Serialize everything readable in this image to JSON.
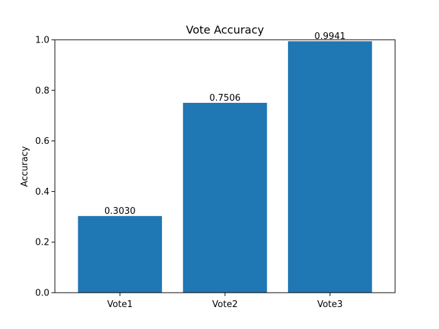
{
  "chart_data": {
    "type": "bar",
    "title": "Vote Accuracy",
    "xlabel": "",
    "ylabel": "Accuracy",
    "categories": [
      "Vote1",
      "Vote2",
      "Vote3"
    ],
    "values": [
      0.303,
      0.7506,
      0.9941
    ],
    "value_labels": [
      "0.3030",
      "0.7506",
      "0.9941"
    ],
    "ylim": [
      0,
      1.0
    ],
    "yticks": [
      0.0,
      0.2,
      0.4,
      0.6,
      0.8,
      1.0
    ],
    "ytick_labels": [
      "0.0",
      "0.2",
      "0.4",
      "0.6",
      "0.8",
      "1.0"
    ],
    "bar_color": "#1f77b4",
    "grid": false,
    "legend": "none"
  }
}
